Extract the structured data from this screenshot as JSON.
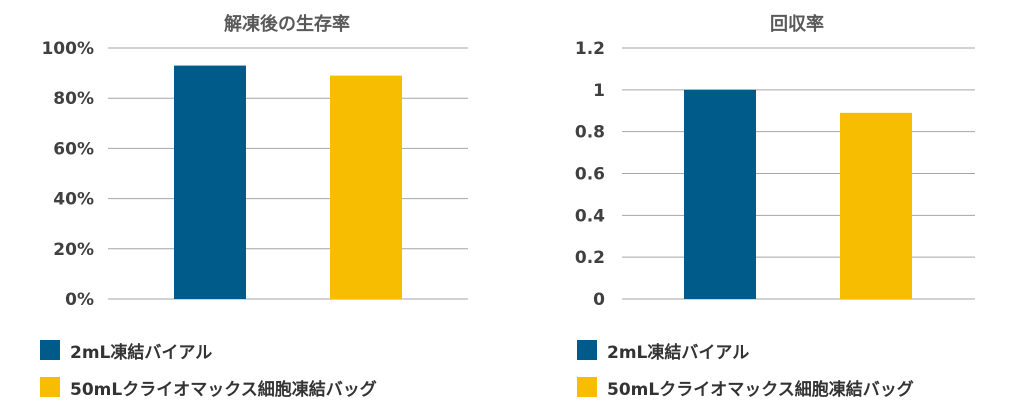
{
  "colors": {
    "series1": "#005a8a",
    "series2": "#f7bd00",
    "gridline": "#a6a6a6",
    "title": "#595959",
    "ticks": "#404040"
  },
  "legend": [
    {
      "label": "2mL凍結バイアル",
      "color": "#005a8a"
    },
    {
      "label": "50mLクライオマックス細胞凍結バッグ",
      "color": "#f7bd00"
    }
  ],
  "chart_data": [
    {
      "type": "bar",
      "title": "解凍後の生存率",
      "categories": [
        "2mL凍結バイアル",
        "50mLクライオマックス細胞凍結バッグ"
      ],
      "values": [
        0.93,
        0.89
      ],
      "ylim": [
        0,
        1
      ],
      "yticks": [
        "0%",
        "20%",
        "40%",
        "60%",
        "80%",
        "100%"
      ],
      "grid": true,
      "legend_position": "bottom"
    },
    {
      "type": "bar",
      "title": "回収率",
      "categories": [
        "2mL凍結バイアル",
        "50mLクライオマックス細胞凍結バッグ"
      ],
      "values": [
        1.0,
        0.89
      ],
      "ylim": [
        0,
        1.2
      ],
      "yticks": [
        "0",
        "0.2",
        "0.4",
        "0.6",
        "0.8",
        "1",
        "1.2"
      ],
      "grid": true,
      "legend_position": "bottom"
    }
  ]
}
